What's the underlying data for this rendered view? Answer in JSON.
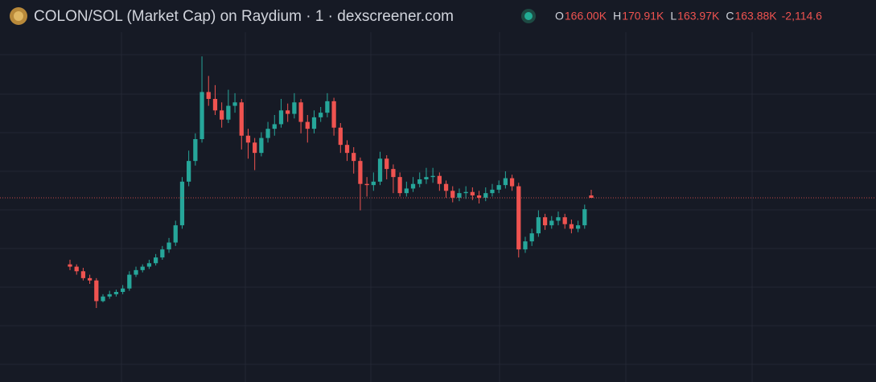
{
  "chart_data": {
    "type": "candlestick",
    "title": "COLON/SOL (Market Cap) on Raydium · 1 · dexscreener.com",
    "ohlc_labels": [
      "O",
      "H",
      "L",
      "C"
    ],
    "last_labels": [
      "166.00K",
      "170.91K",
      "163.97K",
      "163.88K"
    ],
    "change_label": "-2,114.6",
    "ylim": [
      3.6,
      308.1
    ],
    "up_color": "#26a69a",
    "down_color": "#ef5350",
    "open": [
      106,
      104,
      100,
      94,
      92,
      74,
      78,
      80,
      82,
      85,
      97,
      101,
      104,
      107,
      112,
      119,
      125,
      140,
      178,
      196,
      215,
      256,
      250,
      240,
      232,
      244,
      247,
      218,
      212,
      203,
      216,
      224,
      228,
      240,
      237,
      247,
      230,
      224,
      234,
      238,
      248,
      225,
      210,
      203,
      196,
      176,
      175,
      178,
      198,
      189,
      182,
      168,
      172,
      176,
      180,
      182,
      183,
      176,
      170,
      164,
      168,
      169,
      166,
      164,
      168,
      171,
      175,
      181,
      174,
      119,
      126,
      133,
      147,
      140,
      144,
      147,
      141,
      137,
      140,
      166
    ],
    "high": [
      110,
      106,
      103,
      97,
      94,
      80,
      83,
      84,
      88,
      100,
      104,
      106,
      110,
      115,
      122,
      129,
      144,
      182,
      205,
      220,
      287,
      270,
      262,
      247,
      258,
      255,
      250,
      224,
      216,
      221,
      230,
      236,
      250,
      246,
      255,
      250,
      236,
      240,
      243,
      255,
      251,
      229,
      214,
      208,
      199,
      182,
      186,
      204,
      201,
      193,
      186,
      178,
      182,
      186,
      190,
      190,
      186,
      179,
      174,
      172,
      174,
      173,
      170,
      173,
      176,
      179,
      187,
      184,
      177,
      130,
      137,
      153,
      150,
      148,
      152,
      150,
      145,
      144,
      158,
      170.91
    ],
    "low": [
      101,
      97,
      92,
      89,
      68,
      73,
      76,
      78,
      80,
      83,
      95,
      99,
      102,
      105,
      110,
      116,
      122,
      137,
      174,
      192,
      212,
      244,
      236,
      225,
      229,
      238,
      206,
      198,
      188,
      200,
      212,
      218,
      225,
      230,
      233,
      220,
      212,
      220,
      230,
      234,
      218,
      203,
      196,
      185,
      153,
      165,
      170,
      175,
      180,
      168,
      165,
      165,
      169,
      173,
      176,
      177,
      170,
      164,
      160,
      161,
      163,
      162,
      159,
      161,
      165,
      168,
      172,
      170,
      112,
      116,
      122,
      130,
      136,
      137,
      140,
      137,
      133,
      134,
      137,
      163.97
    ],
    "close": [
      104,
      100,
      94,
      92,
      74,
      78,
      80,
      82,
      85,
      97,
      101,
      104,
      107,
      112,
      119,
      125,
      140,
      178,
      196,
      215,
      256,
      250,
      240,
      232,
      244,
      247,
      218,
      212,
      203,
      216,
      224,
      228,
      240,
      237,
      247,
      230,
      224,
      234,
      238,
      248,
      225,
      210,
      203,
      196,
      176,
      175,
      178,
      198,
      189,
      182,
      168,
      172,
      176,
      180,
      182,
      183,
      176,
      170,
      164,
      168,
      169,
      166,
      164,
      168,
      171,
      175,
      181,
      174,
      119,
      126,
      133,
      147,
      140,
      144,
      147,
      141,
      137,
      140,
      154,
      163.88
    ]
  }
}
